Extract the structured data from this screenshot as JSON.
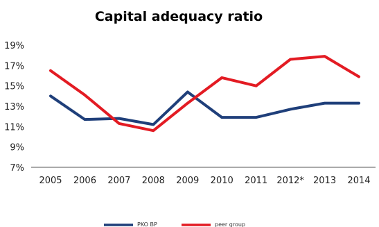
{
  "chart_data": {
    "type": "line",
    "title": "Capital adequacy ratio",
    "xlabel": "",
    "ylabel": "",
    "categories": [
      "2005",
      "2006",
      "2007",
      "2008",
      "2009",
      "2010",
      "2011",
      "2012*",
      "2013",
      "2014"
    ],
    "y_ticks": [
      "19%",
      "17%",
      "15%",
      "13%",
      "11%",
      "9%",
      "7%"
    ],
    "y_tick_values": [
      19,
      17,
      15,
      13,
      11,
      9,
      7
    ],
    "ylim": [
      7,
      19
    ],
    "grid": false,
    "legend_position": "bottom",
    "series": [
      {
        "name": "PKO BP",
        "color": "#1f3f7a",
        "values": [
          14.0,
          11.7,
          11.8,
          11.2,
          14.4,
          11.9,
          11.9,
          12.7,
          13.3,
          13.3
        ]
      },
      {
        "name": "peer group",
        "color": "#e31b23",
        "values": [
          16.5,
          14.1,
          11.3,
          10.6,
          13.3,
          15.8,
          15.0,
          17.6,
          17.9,
          15.9
        ]
      }
    ]
  }
}
